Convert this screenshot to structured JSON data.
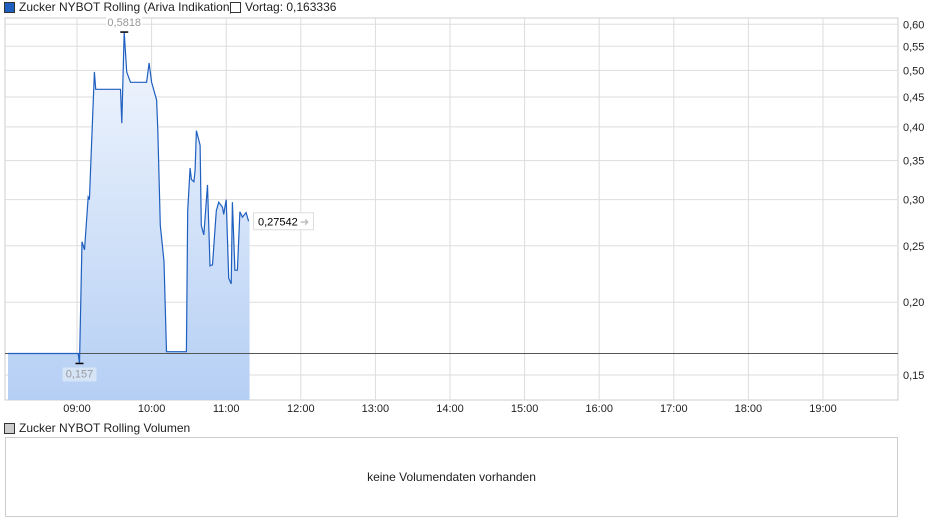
{
  "legend": {
    "series": "Zucker NYBOT Rolling (Ariva Indikation)",
    "series_color": "#1f5fbf",
    "previous": "Vortag: 0,163336"
  },
  "volume": {
    "legend": "Zucker NYBOT Rolling Volumen",
    "empty_text": "keine Volumendaten vorhanden"
  },
  "chart_data": {
    "type": "area",
    "yscale": "log",
    "ylim": [
      0.13,
      0.62
    ],
    "xlim": [
      "08:00",
      "20:00"
    ],
    "grid": true,
    "y_ticks": [
      0.15,
      0.2,
      0.25,
      0.3,
      0.35,
      0.4,
      0.45,
      0.5,
      0.55,
      0.6
    ],
    "y_tick_labels": [
      "0,15",
      "0,20",
      "0,25",
      "0,30",
      "0,35",
      "0,40",
      "0,45",
      "0,50",
      "0,55",
      "0,60"
    ],
    "x_ticks": [
      "09:00",
      "10:00",
      "11:00",
      "12:00",
      "13:00",
      "14:00",
      "15:00",
      "16:00",
      "17:00",
      "18:00",
      "19:00"
    ],
    "previous_close": 0.163336,
    "max": {
      "time": "09:38",
      "value": 0.5818,
      "label": "0,5818"
    },
    "min": {
      "time": "09:02",
      "value": 0.157,
      "label": "0,157"
    },
    "last": {
      "value": 0.27542,
      "label": "0,27542"
    },
    "series": [
      {
        "color": "#1f5fbf",
        "points": [
          [
            "08:03",
            0.1633
          ],
          [
            "09:01",
            0.1633
          ],
          [
            "09:02",
            0.157
          ],
          [
            "09:04",
            0.254
          ],
          [
            "09:06",
            0.246
          ],
          [
            "09:09",
            0.303
          ],
          [
            "09:10",
            0.3
          ],
          [
            "09:14",
            0.497
          ],
          [
            "09:15",
            0.464
          ],
          [
            "09:35",
            0.464
          ],
          [
            "09:36",
            0.406
          ],
          [
            "09:38",
            0.5818
          ],
          [
            "09:40",
            0.497
          ],
          [
            "09:43",
            0.477
          ],
          [
            "09:56",
            0.477
          ],
          [
            "09:58",
            0.515
          ],
          [
            "10:00",
            0.477
          ],
          [
            "10:04",
            0.445
          ],
          [
            "10:05",
            0.395
          ],
          [
            "10:07",
            0.271
          ],
          [
            "10:08",
            0.259
          ],
          [
            "10:10",
            0.235
          ],
          [
            "10:12",
            0.1645
          ],
          [
            "10:28",
            0.1645
          ],
          [
            "10:29",
            0.287
          ],
          [
            "10:31",
            0.34
          ],
          [
            "10:32",
            0.325
          ],
          [
            "10:34",
            0.322
          ],
          [
            "10:35",
            0.337
          ],
          [
            "10:36",
            0.394
          ],
          [
            "10:39",
            0.372
          ],
          [
            "10:40",
            0.271
          ],
          [
            "10:42",
            0.261
          ],
          [
            "10:45",
            0.318
          ],
          [
            "10:47",
            0.231
          ],
          [
            "10:49",
            0.232
          ],
          [
            "10:52",
            0.287
          ],
          [
            "10:54",
            0.297
          ],
          [
            "10:57",
            0.291
          ],
          [
            "10:58",
            0.283
          ],
          [
            "11:00",
            0.3
          ],
          [
            "11:02",
            0.22
          ],
          [
            "11:04",
            0.215
          ],
          [
            "11:05",
            0.297
          ],
          [
            "11:07",
            0.227
          ],
          [
            "11:09",
            0.227
          ],
          [
            "11:11",
            0.286
          ],
          [
            "11:13",
            0.28
          ],
          [
            "11:16",
            0.285
          ],
          [
            "11:18",
            0.27542
          ]
        ]
      }
    ]
  }
}
